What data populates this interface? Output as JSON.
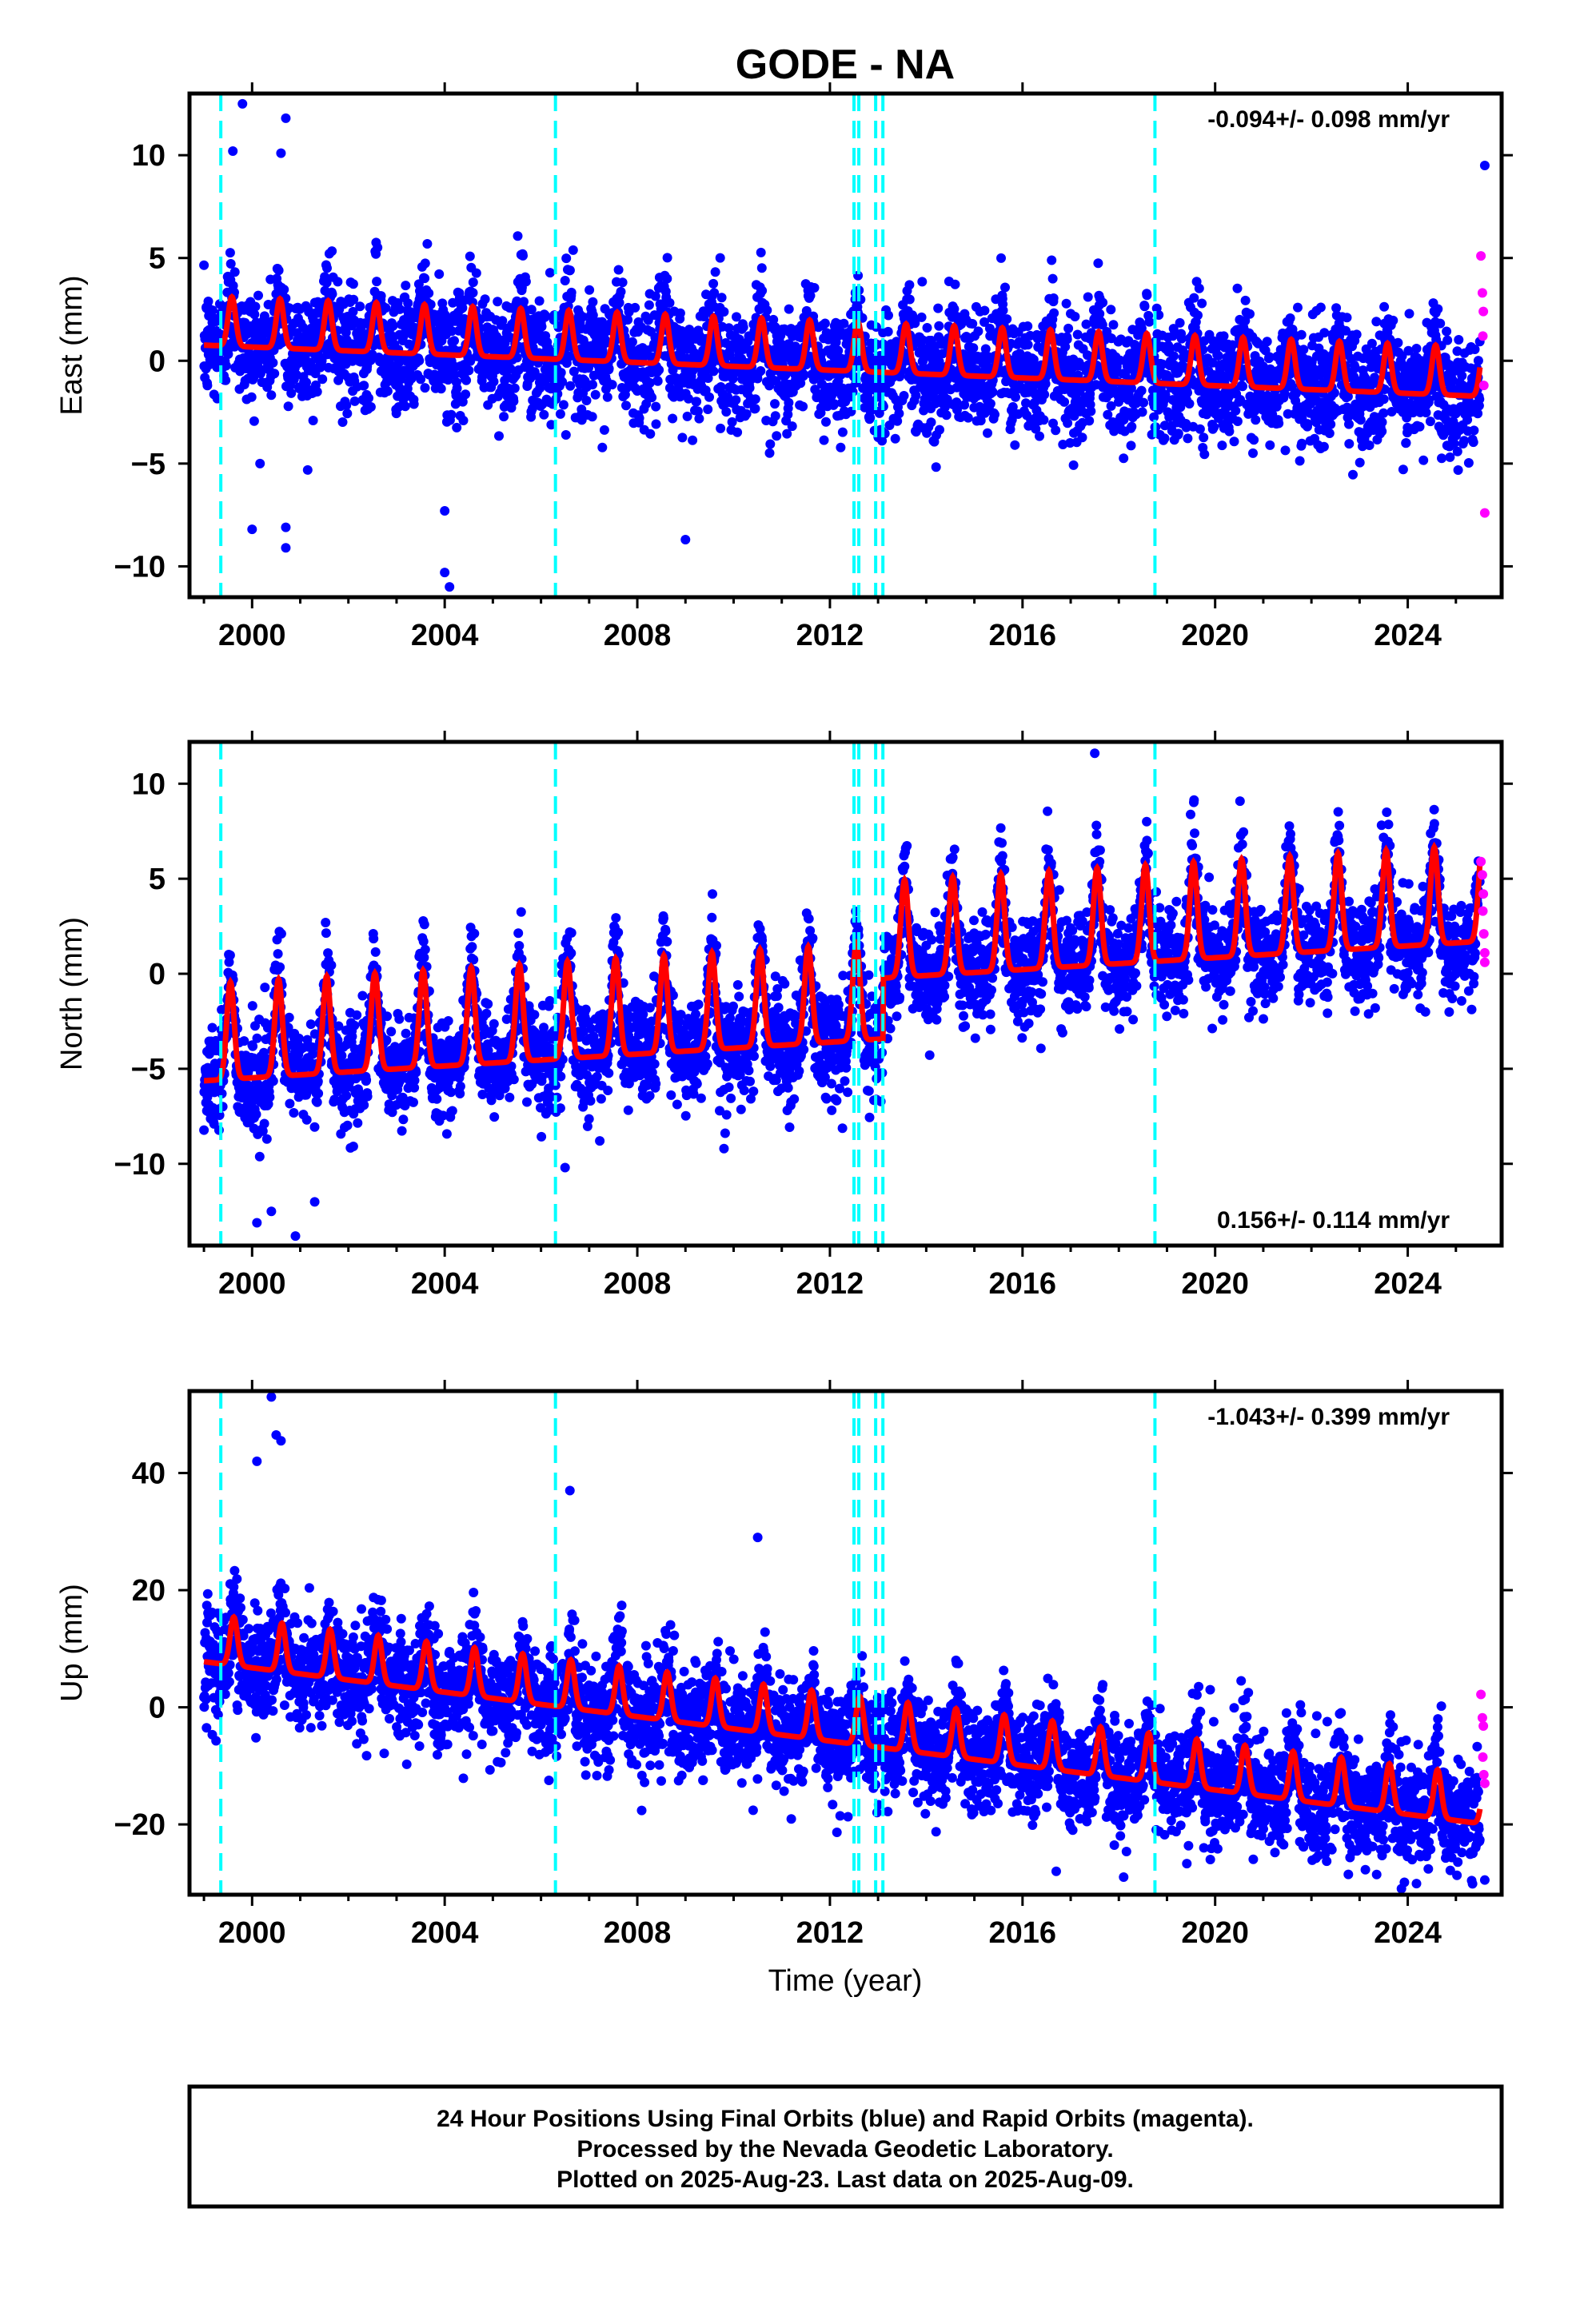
{
  "title": "GODE - NA",
  "xlabel": "Time (year)",
  "footer": {
    "line1": "24 Hour Positions Using Final Orbits (blue) and Rapid Orbits (magenta).",
    "line2": "Processed by the Nevada Geodetic Laboratory.",
    "line3": "Plotted on 2025-Aug-23. Last data on 2025-Aug-09."
  },
  "colors": {
    "final_orbits": "#0000ff",
    "rapid_orbits": "#ff00ff",
    "model": "#ff0000",
    "events": "#00ffff",
    "frame": "#000000"
  },
  "chart_data": [
    {
      "type": "scatter",
      "panel": "east",
      "ylabel": "East (mm)",
      "rate": "-0.094+/- 0.098 mm/yr",
      "rate_position": "top-right",
      "xlim": [
        1998.7,
        2025.95
      ],
      "ylim": [
        -11.5,
        13
      ],
      "xticks": [
        2000,
        2004,
        2008,
        2012,
        2016,
        2020,
        2024
      ],
      "xtick_labels": [
        "2000",
        "2004",
        "2008",
        "2012",
        "2016",
        "2020",
        "2024"
      ],
      "yticks": [
        -10,
        -5,
        0,
        5,
        10
      ],
      "ytick_labels": [
        "−10",
        "−5",
        "0",
        "5",
        "10"
      ],
      "grid": false,
      "series": [
        {
          "name": "Final Orbits",
          "color": "#0000ff",
          "approx_range": [
            1999.0,
            2025.5
          ],
          "trend_mm_per_yr": -0.094,
          "annual_amplitude_mm": 1.6,
          "peak_phase": 0.58,
          "scatter_sigma_mm": 1.4,
          "outliers": [
            [
              1999.6,
              10.2
            ],
            [
              1999.8,
              12.5
            ],
            [
              2000.6,
              10.1
            ],
            [
              2000.7,
              11.8
            ],
            [
              2000.7,
              -8.1
            ],
            [
              2000.7,
              -9.1
            ],
            [
              2000.0,
              -8.2
            ],
            [
              2004.0,
              -7.3
            ],
            [
              2004.0,
              -10.3
            ],
            [
              2004.1,
              -11.0
            ],
            [
              2009.0,
              -8.7
            ],
            [
              2025.6,
              9.5
            ]
          ]
        },
        {
          "name": "Rapid Orbits",
          "color": "#ff00ff",
          "points": [
            [
              2025.52,
              5.1
            ],
            [
              2025.55,
              3.3
            ],
            [
              2025.57,
              2.4
            ],
            [
              2025.56,
              1.2
            ],
            [
              2025.58,
              -1.2
            ],
            [
              2025.6,
              -7.4
            ]
          ]
        }
      ],
      "offsets": [
        1999.35,
        2006.3,
        2012.5,
        2012.6,
        2012.95,
        2013.1,
        2018.75
      ]
    },
    {
      "type": "scatter",
      "panel": "north",
      "ylabel": "North (mm)",
      "rate": "0.156+/- 0.114 mm/yr",
      "rate_position": "bottom-right",
      "xlim": [
        1998.7,
        2025.95
      ],
      "ylim": [
        -14.3,
        12.2
      ],
      "xticks": [
        2000,
        2004,
        2008,
        2012,
        2016,
        2020,
        2024
      ],
      "xtick_labels": [
        "2000",
        "2004",
        "2008",
        "2012",
        "2016",
        "2020",
        "2024"
      ],
      "yticks": [
        -10,
        -5,
        0,
        5,
        10
      ],
      "ytick_labels": [
        "−10",
        "−5",
        "0",
        "5",
        "10"
      ],
      "grid": false,
      "series": [
        {
          "name": "Final Orbits",
          "color": "#0000ff",
          "approx_range": [
            1999.0,
            2025.5
          ],
          "trend_mm_per_yr": 0.156,
          "annual_amplitude_mm": 3.4,
          "peak_phase": 0.55,
          "scatter_sigma_mm": 1.3,
          "step_at": 2013.1,
          "step_mm": 3.2,
          "outliers": [
            [
              2000.1,
              -13.1
            ],
            [
              2000.4,
              -12.5
            ],
            [
              2000.9,
              -13.8
            ],
            [
              2001.3,
              -12.0
            ],
            [
              2006.5,
              -10.2
            ],
            [
              2017.5,
              11.6
            ],
            [
              2009.8,
              -9.2
            ]
          ]
        },
        {
          "name": "Rapid Orbits",
          "color": "#ff00ff",
          "points": [
            [
              2025.52,
              5.9
            ],
            [
              2025.55,
              5.2
            ],
            [
              2025.57,
              4.2
            ],
            [
              2025.56,
              3.3
            ],
            [
              2025.58,
              2.1
            ],
            [
              2025.6,
              1.1
            ],
            [
              2025.6,
              0.6
            ]
          ]
        }
      ],
      "offsets": [
        1999.35,
        2006.3,
        2012.5,
        2012.6,
        2012.95,
        2013.1,
        2018.75
      ]
    },
    {
      "type": "scatter",
      "panel": "up",
      "ylabel": "Up (mm)",
      "rate": "-1.043+/- 0.399 mm/yr",
      "rate_position": "top-right",
      "xlim": [
        1998.7,
        2025.95
      ],
      "ylim": [
        -32,
        54
      ],
      "xticks": [
        2000,
        2004,
        2008,
        2012,
        2016,
        2020,
        2024
      ],
      "xtick_labels": [
        "2000",
        "2004",
        "2008",
        "2012",
        "2016",
        "2020",
        "2024"
      ],
      "yticks": [
        -20,
        0,
        20,
        40
      ],
      "ytick_labels": [
        "−20",
        "0",
        "20",
        "40"
      ],
      "grid": false,
      "series": [
        {
          "name": "Final Orbits",
          "color": "#0000ff",
          "approx_range": [
            1999.0,
            2025.5
          ],
          "trend_mm_per_yr": -1.043,
          "annual_amplitude_mm": 5.5,
          "peak_phase": 0.62,
          "scatter_sigma_mm": 4.5,
          "outliers": [
            [
              2000.1,
              42.0
            ],
            [
              2000.4,
              53.0
            ],
            [
              2000.5,
              46.5
            ],
            [
              2000.6,
              45.5
            ],
            [
              2006.6,
              37.0
            ],
            [
              2010.5,
              29.0
            ],
            [
              2016.7,
              -28.0
            ],
            [
              2018.1,
              -29.0
            ],
            [
              2019.9,
              -26.0
            ],
            [
              2025.6,
              -29.5
            ]
          ]
        },
        {
          "name": "Rapid Orbits",
          "color": "#ff00ff",
          "points": [
            [
              2025.52,
              2.2
            ],
            [
              2025.55,
              -1.8
            ],
            [
              2025.57,
              -3.2
            ],
            [
              2025.56,
              -8.5
            ],
            [
              2025.58,
              -11.5
            ],
            [
              2025.6,
              -13.0
            ]
          ]
        }
      ],
      "offsets": [
        1999.35,
        2006.3,
        2012.5,
        2012.6,
        2012.95,
        2013.1,
        2018.75
      ]
    }
  ]
}
